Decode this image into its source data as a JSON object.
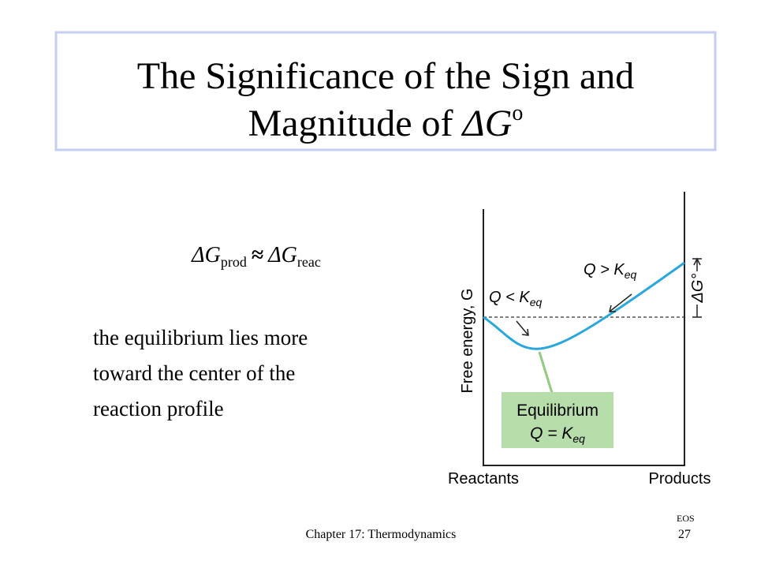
{
  "title": {
    "line1": "The Significance of the Sign and",
    "line2": "Magnitude of ",
    "symbol": "ΔG",
    "superscript": "o"
  },
  "equation": {
    "lhs": "ΔG",
    "lhs_sub": "prod",
    "operator": "≈",
    "rhs": "ΔG",
    "rhs_sub": "reac"
  },
  "body": [
    "the equilibrium  lies more",
    "toward the center of the",
    "reaction profile"
  ],
  "diagram": {
    "y_axis_label": "Free energy, G",
    "left_label": {
      "text": "Q < K",
      "sub": "eq"
    },
    "right_label": {
      "text": "Q > K",
      "sub": "eq"
    },
    "delta_label": "ΔG°",
    "box": {
      "line1": "Equilibrium",
      "line2": "Q = K",
      "sub": "eq"
    },
    "x_left": "Reactants",
    "x_right": "Products"
  },
  "footer": {
    "chapter": "Chapter 17: Thermodynamics",
    "code": "EOS",
    "page": "27"
  }
}
